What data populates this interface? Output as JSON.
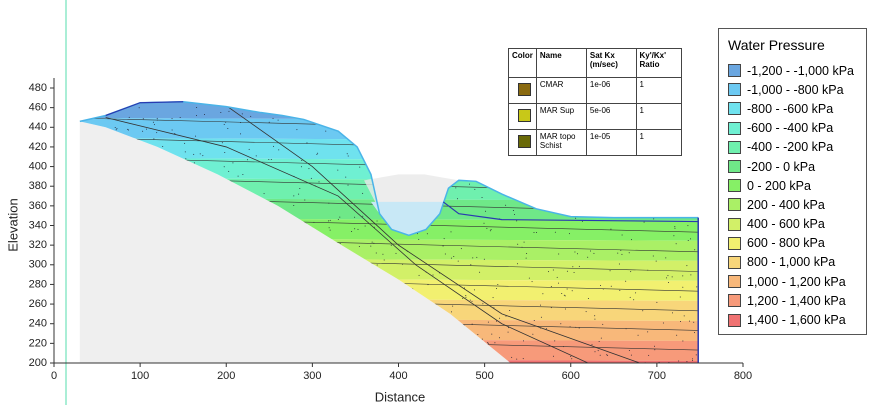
{
  "chart_data": {
    "type": "contour",
    "xlabel": "Distance",
    "ylabel": "Elevation",
    "xlim": [
      0,
      800
    ],
    "xticks": [
      0,
      100,
      200,
      300,
      400,
      500,
      600,
      700,
      800
    ],
    "ylim": [
      200,
      480
    ],
    "yticks": [
      200,
      220,
      240,
      260,
      280,
      300,
      320,
      340,
      360,
      380,
      400,
      420,
      440,
      460,
      480
    ],
    "legend_title": "Water Pressure",
    "series": [
      {
        "name": "-1,200 - -1,000 kPa",
        "color": "#6aa6e0"
      },
      {
        "name": "-1,000 - -800 kPa",
        "color": "#6cc9f2"
      },
      {
        "name": "-800 - -600 kPa",
        "color": "#6fe2ee"
      },
      {
        "name": "-600 - -400 kPa",
        "color": "#6ff0d2"
      },
      {
        "name": "-400 - -200 kPa",
        "color": "#6ff0ae"
      },
      {
        "name": "-200 - 0 kPa",
        "color": "#6fe888"
      },
      {
        "name": "0 - 200 kPa",
        "color": "#86f066"
      },
      {
        "name": "200 - 400 kPa",
        "color": "#aaf066"
      },
      {
        "name": "400 - 600 kPa",
        "color": "#d2f068"
      },
      {
        "name": "600 - 800 kPa",
        "color": "#f2f070"
      },
      {
        "name": "800 - 1,000 kPa",
        "color": "#f8d67a"
      },
      {
        "name": "1,000 - 1,200 kPa",
        "color": "#f8b87a"
      },
      {
        "name": "1,200 - 1,400 kPa",
        "color": "#f79a7a"
      },
      {
        "name": "1,400 - 1,600 kPa",
        "color": "#f07272"
      }
    ],
    "materials": {
      "columns": [
        "Color",
        "Name",
        "Sat Kx (m/sec)",
        "Ky'/Kx' Ratio"
      ],
      "rows": [
        {
          "color": "#8a6a10",
          "name": "CMAR",
          "kx": "1e-06",
          "ratio": "1"
        },
        {
          "color": "#c8c818",
          "name": "MAR Sup",
          "kx": "5e-06",
          "ratio": "1"
        },
        {
          "color": "#6a6a08",
          "name": "MAR topo Schist",
          "kx": "1e-05",
          "ratio": "1"
        }
      ]
    }
  }
}
